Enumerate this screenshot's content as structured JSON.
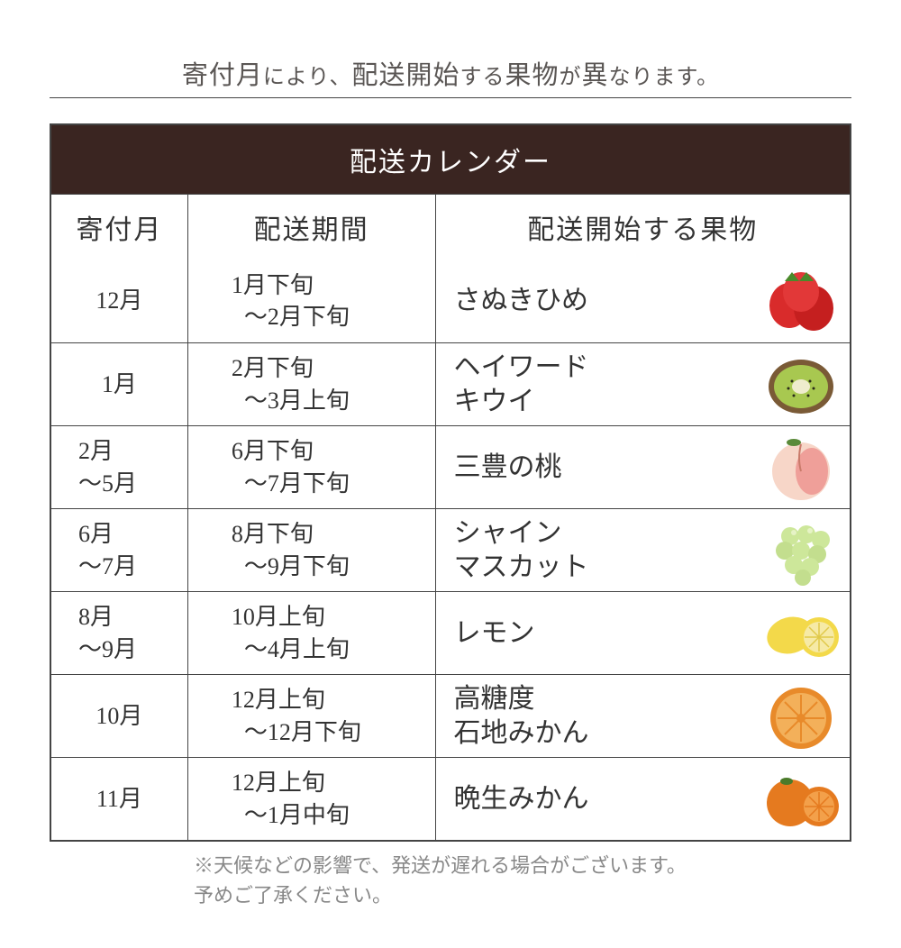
{
  "headline": {
    "p1": "寄付月",
    "p2": "により、",
    "p3": "配送開始",
    "p4": "する",
    "p5": "果物",
    "p6": "が",
    "p7": "異",
    "p8": "なります。"
  },
  "table": {
    "title": "配送カレンダー",
    "headers": {
      "month": "寄付月",
      "period": "配送期間",
      "fruit": "配送開始する果物"
    },
    "rows": [
      {
        "month_lines": [
          "12月"
        ],
        "period_lines": [
          "1月下旬",
          "～2月下旬"
        ],
        "fruit_lines": [
          "さぬきひめ"
        ],
        "icon": "strawberry"
      },
      {
        "month_lines": [
          "1月"
        ],
        "period_lines": [
          "2月下旬",
          "～3月上旬"
        ],
        "fruit_lines": [
          "ヘイワード",
          "キウイ"
        ],
        "icon": "kiwi"
      },
      {
        "month_lines": [
          "2月",
          "～5月"
        ],
        "period_lines": [
          "6月下旬",
          "～7月下旬"
        ],
        "fruit_lines": [
          "三豊の桃"
        ],
        "icon": "peach"
      },
      {
        "month_lines": [
          "6月",
          "～7月"
        ],
        "period_lines": [
          "8月下旬",
          "～9月下旬"
        ],
        "fruit_lines": [
          "シャイン",
          "マスカット"
        ],
        "icon": "grape"
      },
      {
        "month_lines": [
          "8月",
          "～9月"
        ],
        "period_lines": [
          "10月上旬",
          "～4月上旬"
        ],
        "fruit_lines": [
          "レモン"
        ],
        "icon": "lemon"
      },
      {
        "month_lines": [
          "10月"
        ],
        "period_lines": [
          "12月上旬",
          "～12月下旬"
        ],
        "fruit_lines": [
          "高糖度",
          "石地みかん"
        ],
        "icon": "orange"
      },
      {
        "month_lines": [
          "11月"
        ],
        "period_lines": [
          "12月上旬",
          "～1月中旬"
        ],
        "fruit_lines": [
          "晩生みかん"
        ],
        "icon": "mandarin"
      }
    ]
  },
  "footnote": {
    "line1": "※天候などの影響で、発送が遅れる場合がございます。",
    "line2": "予めご了承ください。"
  },
  "colors": {
    "header_bg": "#3a2521",
    "header_fg": "#ffffff",
    "border": "#444444",
    "text": "#333333",
    "footnote": "#888888",
    "background": "#ffffff"
  },
  "icons": {
    "strawberry": {
      "fill": "#d92b2b",
      "leaf": "#4a8a2a"
    },
    "kiwi": {
      "skin": "#7a5a36",
      "flesh": "#a8c850",
      "center": "#efeccd"
    },
    "peach": {
      "fill": "#f7d6c8",
      "blush": "#e97a7a",
      "leaf": "#5a8a3a"
    },
    "grape": {
      "fill": "#cde79a",
      "highlight": "#e6f3c6"
    },
    "lemon": {
      "fill": "#f3d94a",
      "flesh": "#f6eaa6"
    },
    "orange": {
      "fill": "#e88a2a",
      "flesh": "#f3b05a"
    },
    "mandarin": {
      "fill": "#e57a1f",
      "flesh": "#f3a04a",
      "leaf": "#4a7a2a"
    }
  }
}
